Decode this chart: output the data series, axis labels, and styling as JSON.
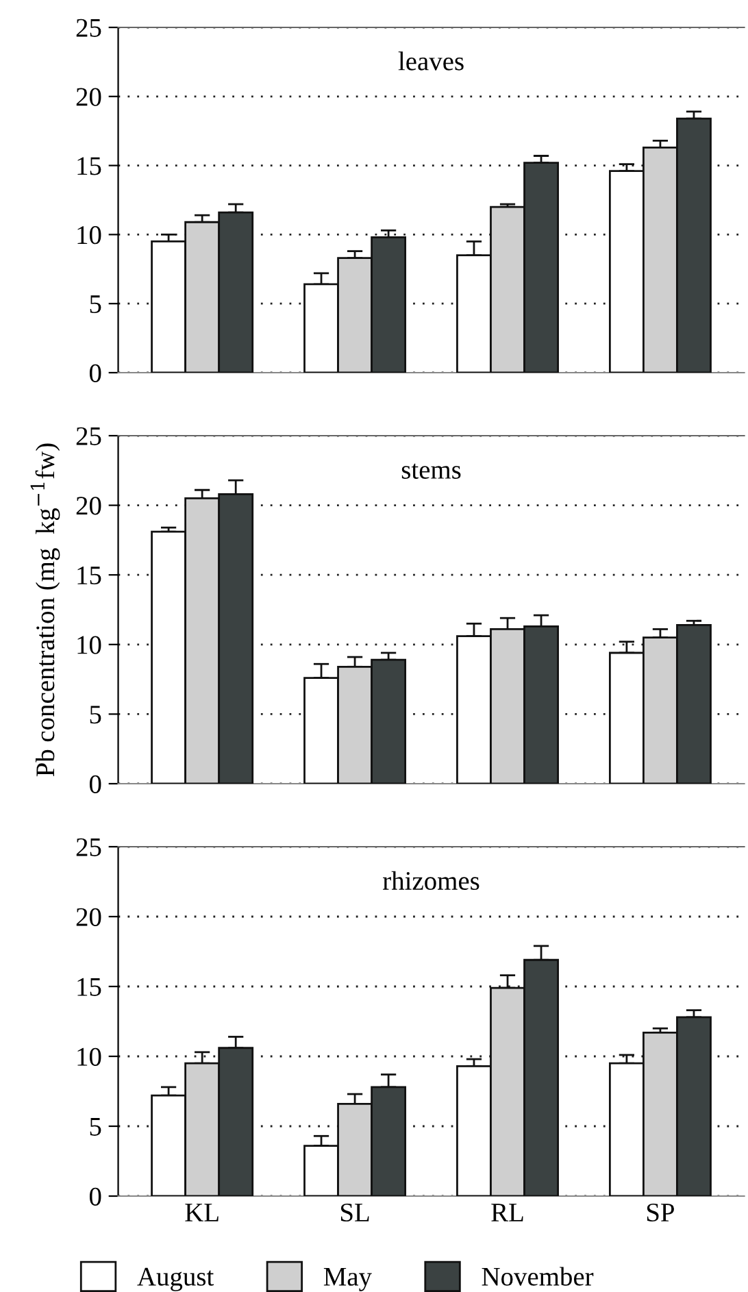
{
  "chart_data": [
    {
      "type": "bar",
      "title": "leaves",
      "categories": [
        null,
        null,
        null,
        null
      ],
      "ylim": [
        0,
        25
      ],
      "yticks": [
        0,
        5,
        10,
        15,
        20,
        25
      ],
      "grid": "y",
      "legend": false,
      "tick_labels": "y",
      "series": [
        {
          "color": "#ffffff",
          "values": [
            9.5,
            6.4,
            8.5,
            14.6
          ],
          "errors": [
            [
              9.5,
              10.0
            ],
            [
              6.4,
              7.2
            ],
            [
              8.5,
              9.5
            ],
            [
              14.6,
              15.1
            ]
          ]
        },
        {
          "color": "#cfcfcf",
          "values": [
            10.9,
            8.3,
            12.0,
            16.3
          ],
          "errors": [
            [
              10.9,
              11.4
            ],
            [
              8.3,
              8.8
            ],
            [
              12.0,
              12.2
            ],
            [
              16.3,
              16.8
            ]
          ]
        },
        {
          "color": "#3b4242",
          "values": [
            11.6,
            9.8,
            15.2,
            18.4
          ],
          "errors": [
            [
              11.6,
              12.2
            ],
            [
              9.8,
              10.3
            ],
            [
              15.2,
              15.7
            ],
            [
              18.4,
              18.9
            ]
          ]
        }
      ]
    },
    {
      "type": "bar",
      "title": "stems",
      "ylabel": "Pb concentration (mg  kg$^{−1}$fw)",
      "categories": [
        null,
        null,
        null,
        null
      ],
      "ylim": [
        0,
        25
      ],
      "yticks": [
        0,
        5,
        10,
        15,
        20,
        25
      ],
      "grid": "y",
      "legend": false,
      "tick_labels": "y",
      "series": [
        {
          "color": "#ffffff",
          "values": [
            18.1,
            7.6,
            10.6,
            9.4
          ],
          "errors": [
            [
              18.1,
              18.4
            ],
            [
              7.6,
              8.6
            ],
            [
              10.6,
              11.5
            ],
            [
              9.4,
              10.2
            ]
          ]
        },
        {
          "color": "#cfcfcf",
          "values": [
            20.5,
            8.4,
            11.1,
            10.5
          ],
          "errors": [
            [
              20.5,
              21.1
            ],
            [
              8.4,
              9.1
            ],
            [
              11.1,
              11.9
            ],
            [
              10.5,
              11.1
            ]
          ]
        },
        {
          "color": "#3b4242",
          "values": [
            20.8,
            8.9,
            11.3,
            11.4
          ],
          "errors": [
            [
              20.8,
              21.8
            ],
            [
              8.9,
              9.4
            ],
            [
              11.3,
              12.1
            ],
            [
              11.4,
              11.7
            ]
          ]
        }
      ]
    },
    {
      "type": "bar",
      "title": "rhizomes",
      "categories": [
        "KL",
        "SL",
        "RL",
        "SP"
      ],
      "ylim": [
        0,
        25
      ],
      "yticks": [
        0,
        5,
        10,
        15,
        20,
        25
      ],
      "grid": "y",
      "legend": "bottom",
      "series": [
        {
          "name": "August",
          "color": "#ffffff",
          "values": [
            7.2,
            3.6,
            9.3,
            9.5
          ],
          "errors": [
            [
              7.2,
              7.8
            ],
            [
              3.6,
              4.3
            ],
            [
              9.3,
              9.8
            ],
            [
              9.5,
              10.1
            ]
          ]
        },
        {
          "name": "May",
          "color": "#cfcfcf",
          "values": [
            9.5,
            6.6,
            14.9,
            11.7
          ],
          "errors": [
            [
              9.5,
              10.3
            ],
            [
              6.6,
              7.3
            ],
            [
              14.9,
              15.8
            ],
            [
              11.7,
              12.0
            ]
          ]
        },
        {
          "name": "November",
          "color": "#3b4242",
          "values": [
            10.6,
            7.8,
            16.9,
            12.8
          ],
          "errors": [
            [
              10.6,
              11.4
            ],
            [
              7.8,
              8.7
            ],
            [
              16.9,
              17.9
            ],
            [
              12.8,
              13.3
            ]
          ]
        }
      ]
    }
  ]
}
